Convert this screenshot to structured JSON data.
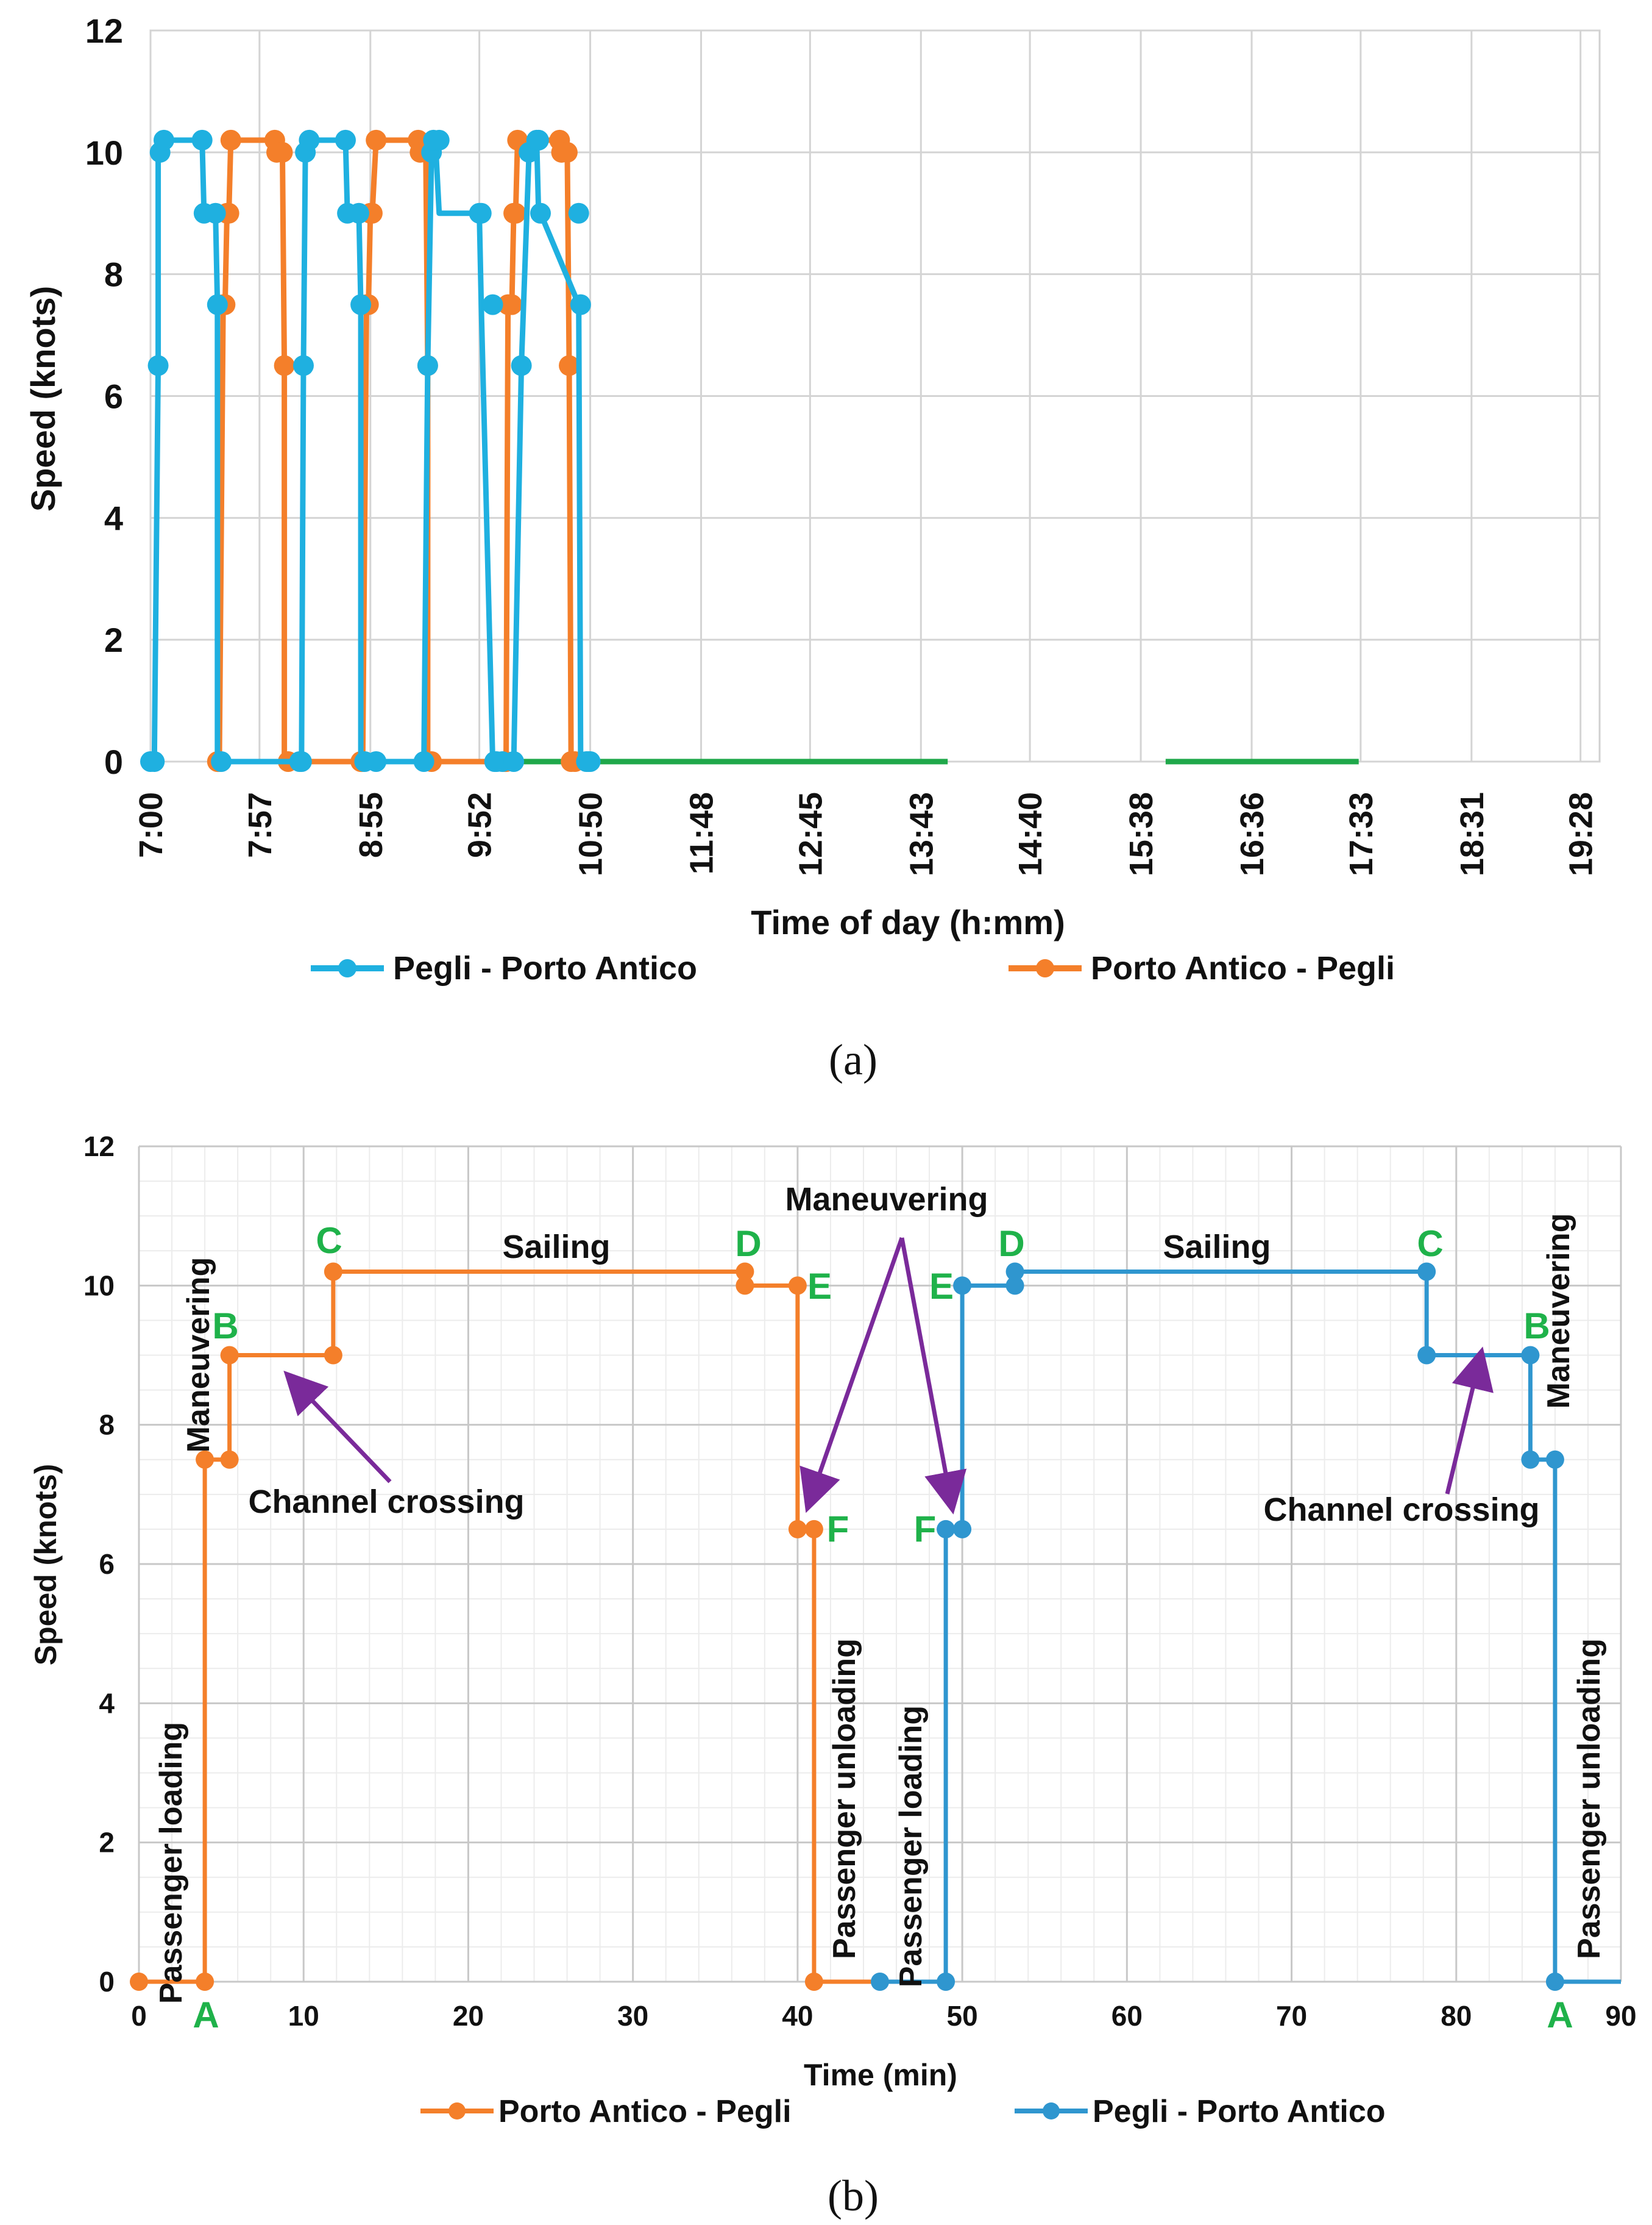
{
  "chart_data": [
    {
      "type": "line",
      "panel": "a",
      "caption": "(a)",
      "xlabel": "Time of day (h:mm)",
      "ylabel": "Speed (knots)",
      "xlim_minutes": [
        420,
        1178
      ],
      "ylim": [
        0,
        12
      ],
      "yticks": [
        "0",
        "2",
        "4",
        "6",
        "8",
        "10",
        "12"
      ],
      "xtick_minutes": [
        420,
        477,
        535,
        592,
        650,
        708,
        765,
        823,
        880,
        938,
        996,
        1053,
        1111,
        1168
      ],
      "xtick_labels": [
        "7:00",
        "7:57",
        "8:55",
        "9:52",
        "10:50",
        "11:48",
        "12:45",
        "13:43",
        "14:40",
        "15:38",
        "16:36",
        "17:33",
        "18:31",
        "19:28"
      ],
      "grid": true,
      "legend": [
        {
          "name": "Pegli - Porto Antico",
          "color": "#1fb0e0"
        },
        {
          "name": "Porto Antico - Pegli",
          "color": "#f47f2a"
        }
      ],
      "idle_color": "#1fa84a",
      "idle_segments": [
        [
          554,
          837
        ],
        [
          951,
          1052
        ]
      ],
      "series": [
        {
          "name": "Pegli - Porto Antico",
          "color": "#1fb0e0",
          "x": [
            420,
            422,
            424,
            424,
            425,
            427,
            447,
            448,
            454,
            455,
            455,
            456,
            457,
            498,
            499,
            500,
            501,
            501,
            503,
            522,
            523,
            529,
            530,
            530,
            531,
            532,
            538,
            563,
            565,
            567,
            567,
            568,
            569,
            571,
            592,
            593,
            599,
            599,
            600,
            601,
            604,
            610,
            614,
            618,
            621,
            621,
            622,
            623,
            624,
            644,
            645,
            648,
            648,
            649,
            650,
            655
          ],
          "y": [
            0,
            0,
            6.5,
            10,
            10,
            10.2,
            10.2,
            9,
            9,
            7.5,
            0,
            0,
            0,
            0,
            0,
            6.5,
            10,
            10,
            10.2,
            10.2,
            9,
            9,
            7.5,
            0,
            0,
            0,
            0,
            0,
            6.5,
            10,
            10,
            10.2,
            10.2,
            9,
            9,
            7.5,
            0,
            0,
            0,
            0,
            0,
            0,
            6.5,
            10,
            10,
            10.2,
            10.2,
            9,
            9,
            7.5,
            0,
            0,
            0,
            0,
            0,
            0
          ],
          "markers_x": [
            420,
            422,
            424,
            425,
            427,
            447,
            448,
            454,
            455,
            457,
            498,
            499,
            500,
            501,
            503,
            522,
            523,
            529,
            530,
            532,
            538,
            563,
            565,
            567,
            568,
            571,
            592,
            593,
            599,
            600,
            601,
            604,
            610,
            614,
            618,
            622,
            623,
            624,
            644,
            645,
            648,
            649,
            650
          ],
          "markers_y": [
            0,
            0,
            6.5,
            10,
            10.2,
            10.2,
            9,
            9,
            7.5,
            0,
            0,
            0,
            6.5,
            10,
            10.2,
            10.2,
            9,
            9,
            7.5,
            0,
            0,
            0,
            6.5,
            10,
            10.2,
            10.2,
            9,
            9,
            7.5,
            0,
            0,
            0,
            0,
            6.5,
            10,
            10.2,
            10.2,
            9,
            9,
            7.5,
            0,
            0,
            0
          ]
        },
        {
          "name": "Porto Antico - Pegli",
          "color": "#f47f2a",
          "x": [
            455,
            456,
            458,
            459,
            460,
            461,
            462,
            485,
            486,
            489,
            490,
            490,
            492,
            530,
            531,
            533,
            534,
            535,
            536,
            538,
            560,
            561,
            564,
            565,
            565,
            567,
            605,
            606,
            607,
            609,
            610,
            611,
            612,
            634,
            635,
            638,
            639,
            640,
            642
          ],
          "y": [
            0,
            0,
            7.5,
            7.5,
            9,
            9,
            10.2,
            10.2,
            10,
            10,
            6.5,
            0,
            0,
            0,
            0,
            7.5,
            7.5,
            9,
            9,
            10.2,
            10.2,
            10,
            10,
            6.5,
            0,
            0,
            0,
            0,
            7.5,
            7.5,
            9,
            9,
            10.2,
            10.2,
            10,
            10,
            6.5,
            0,
            0
          ],
          "markers_x": [
            455,
            456,
            458,
            459,
            460,
            461,
            462,
            485,
            486,
            489,
            490,
            492,
            530,
            531,
            533,
            534,
            535,
            536,
            538,
            560,
            561,
            564,
            565,
            567,
            605,
            606,
            607,
            609,
            610,
            611,
            612,
            634,
            635,
            638,
            639,
            640,
            642
          ],
          "markers_y": [
            0,
            0,
            7.5,
            7.5,
            9,
            9,
            10.2,
            10.2,
            10,
            10,
            6.5,
            0,
            0,
            0,
            7.5,
            7.5,
            9,
            9,
            10.2,
            10.2,
            10,
            10,
            6.5,
            0,
            0,
            0,
            7.5,
            7.5,
            9,
            9,
            10.2,
            10.2,
            10,
            10,
            6.5,
            0,
            0
          ]
        }
      ]
    },
    {
      "type": "line",
      "panel": "b",
      "caption": "(b)",
      "xlabel": "Time (min)",
      "ylabel": "Speed (knots)",
      "xlim": [
        0,
        90
      ],
      "ylim": [
        0,
        12
      ],
      "xticks": [
        "0",
        "10",
        "20",
        "30",
        "40",
        "50",
        "60",
        "70",
        "80",
        "90"
      ],
      "yticks": [
        "0",
        "2",
        "4",
        "6",
        "8",
        "10",
        "12"
      ],
      "grid": true,
      "legend": [
        {
          "name": "Porto Antico - Pegli",
          "color": "#f47f2a"
        },
        {
          "name": "Pegli - Porto Antico",
          "color": "#2f96cf"
        }
      ],
      "series": [
        {
          "name": "Porto Antico - Pegli",
          "color": "#f47f2a",
          "x": [
            0,
            4,
            4,
            5.5,
            5.5,
            11.8,
            11.8,
            36.8,
            36.8,
            40,
            40,
            41,
            41,
            45
          ],
          "y": [
            0,
            0,
            7.5,
            7.5,
            9,
            9,
            10.2,
            10.2,
            10,
            10,
            6.5,
            6.5,
            0,
            0
          ],
          "markers_x": [
            0,
            4,
            4,
            5.5,
            5.5,
            11.8,
            11.8,
            36.8,
            36.8,
            40,
            40,
            41,
            41
          ],
          "markers_y": [
            0,
            0,
            7.5,
            7.5,
            9,
            9,
            10.2,
            10.2,
            10,
            10,
            6.5,
            6.5,
            0
          ]
        },
        {
          "name": "Pegli - Porto Antico",
          "color": "#2f96cf",
          "x": [
            45,
            49,
            49,
            50,
            50,
            53.2,
            53.2,
            78.2,
            78.2,
            84.5,
            84.5,
            86,
            86,
            90
          ],
          "y": [
            0,
            0,
            6.5,
            6.5,
            10,
            10,
            10.2,
            10.2,
            9,
            9,
            7.5,
            7.5,
            0,
            0
          ],
          "markers_x": [
            45,
            49,
            49,
            50,
            50,
            53.2,
            53.2,
            78.2,
            78.2,
            84.5,
            84.5,
            86,
            86
          ],
          "markers_y": [
            0,
            0,
            6.5,
            6.5,
            10,
            10,
            10.2,
            10.2,
            9,
            9,
            7.5,
            7.5,
            0
          ]
        }
      ],
      "annotations": {
        "sailing_left": "Sailing",
        "sailing_right": "Sailing",
        "maneuvering_top": "Maneuvering",
        "maneuvering_left": "Maneuvering",
        "maneuvering_right": "Maneuvering",
        "channel_crossing_left": "Channel crossing",
        "channel_crossing_right": "Channel crossing",
        "passenger_loading_left": "Passenger loading",
        "passenger_unloading_mid": "Passenger unloading",
        "passenger_loading_mid": "Passenger loading",
        "passenger_unloading_right": "Passenger unloading"
      },
      "point_letters": {
        "A_left": "A",
        "B_left": "B",
        "C_left": "C",
        "D_left": "D",
        "E_left": "E",
        "F_left": "F",
        "F_right": "F",
        "E_right": "E",
        "D_right": "D",
        "C_right": "C",
        "B_right": "B",
        "A_right": "A"
      },
      "letter_color": "#1fb24a",
      "arrow_color": "#7a2a9a"
    }
  ]
}
